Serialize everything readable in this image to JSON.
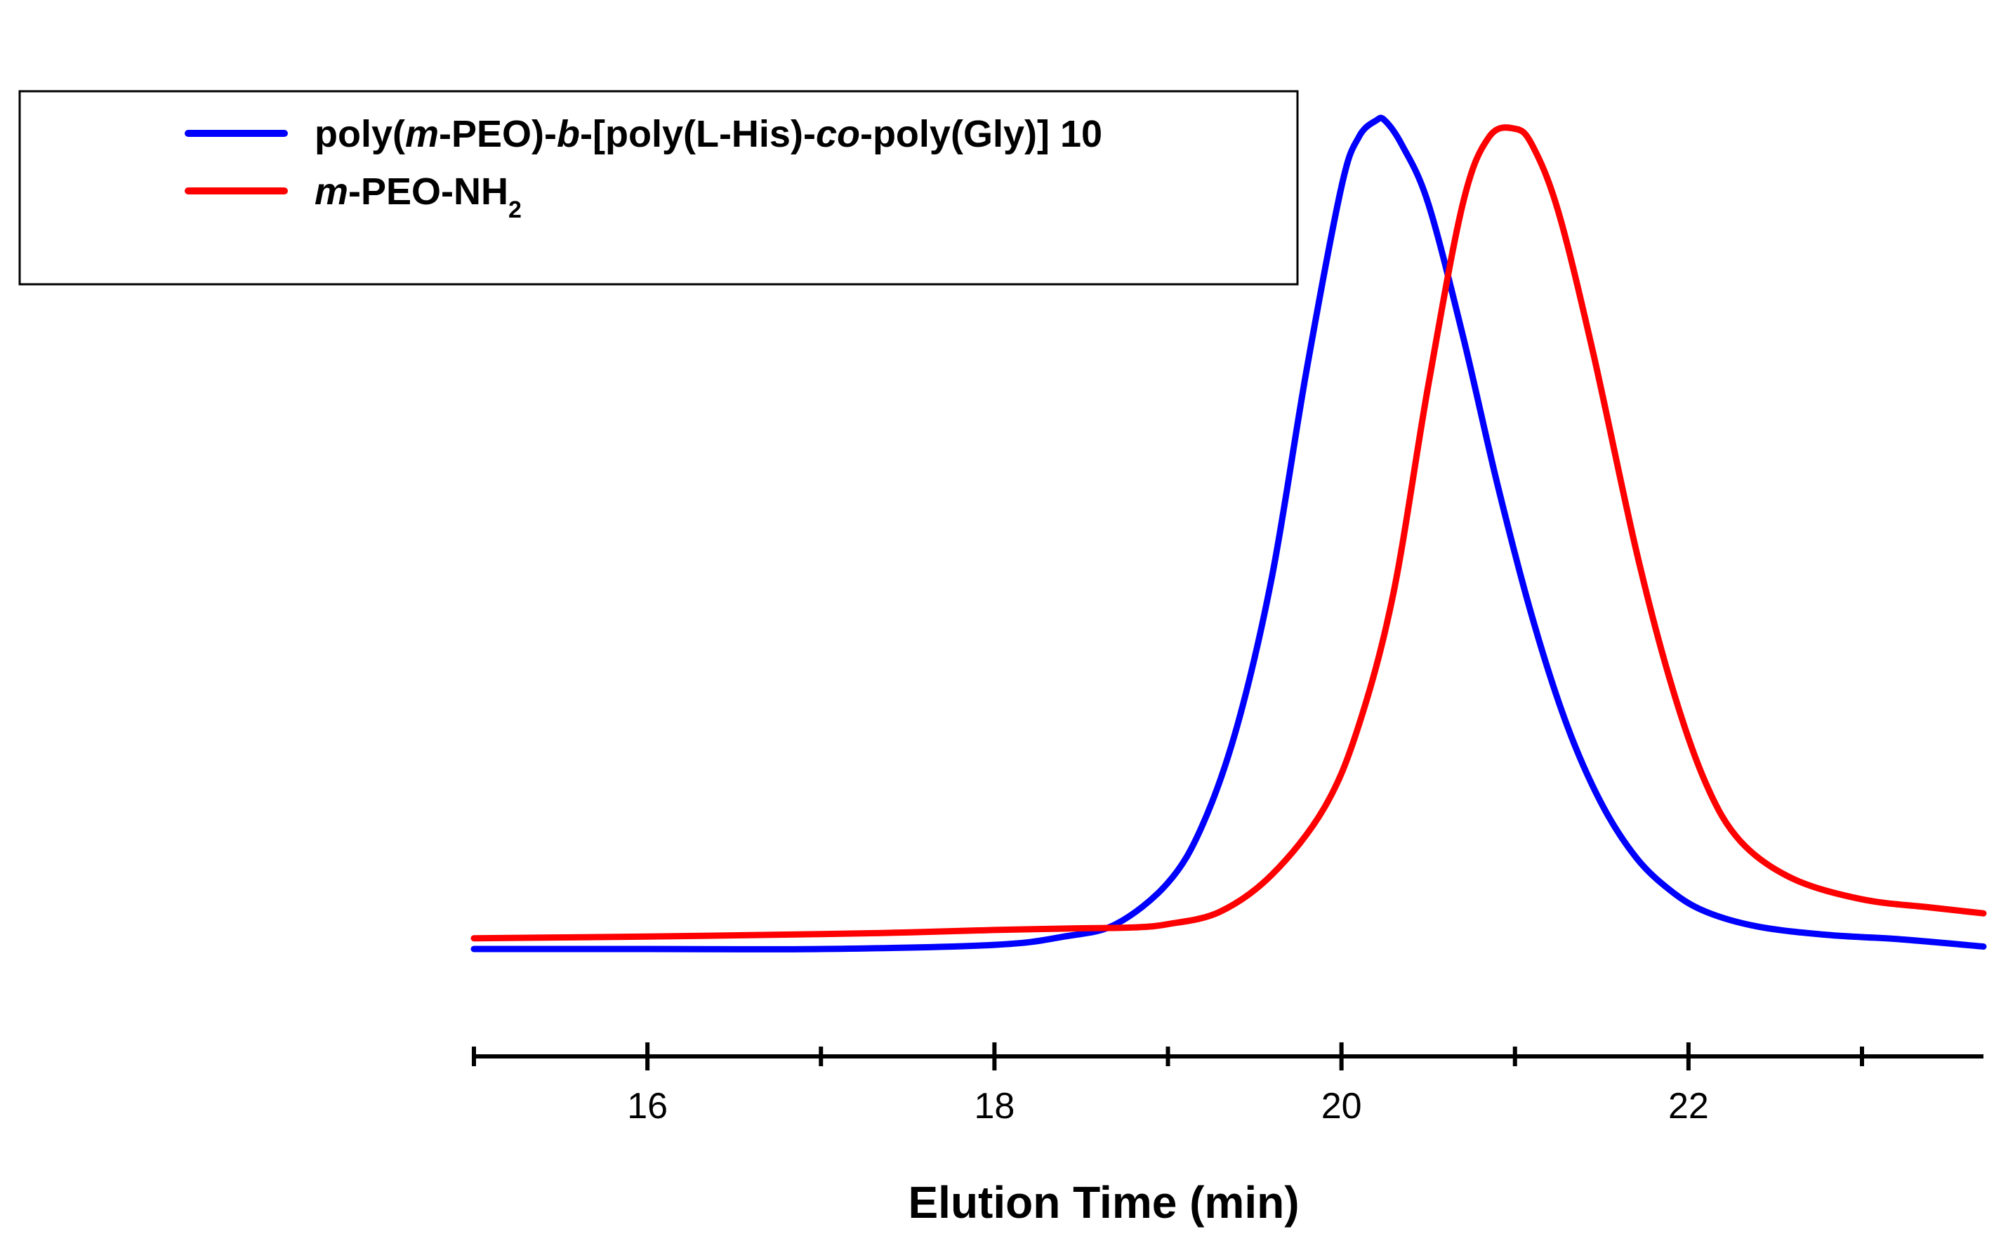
{
  "chart_data": {
    "type": "line",
    "title": "",
    "xlabel": "Elution Time (min)",
    "ylabel": "",
    "xlim": [
      15.0,
      23.7
    ],
    "ylim": [
      0,
      1.12
    ],
    "major_ticks": [
      16,
      18,
      20,
      22
    ],
    "minor_ticks": [
      15,
      17,
      19,
      21,
      23
    ],
    "tick_labels": [
      "16",
      "18",
      "20",
      "22"
    ],
    "grid": false,
    "legend_position": "top-left",
    "series": [
      {
        "name": "poly(m-PEO)-b-[poly(L-His)-co-poly(Gly)] 10",
        "color": "#0000ff",
        "x": [
          15.0,
          16.0,
          17.0,
          18.0,
          18.4,
          18.7,
          19.0,
          19.2,
          19.4,
          19.6,
          19.8,
          20.0,
          20.1,
          20.2,
          20.25,
          20.35,
          20.5,
          20.7,
          20.9,
          21.1,
          21.3,
          21.5,
          21.7,
          21.9,
          22.1,
          22.4,
          22.8,
          23.2,
          23.7
        ],
        "y": [
          0.0,
          0.0,
          0.0,
          0.005,
          0.015,
          0.03,
          0.08,
          0.15,
          0.27,
          0.45,
          0.7,
          0.92,
          0.98,
          1.0,
          1.0,
          0.97,
          0.9,
          0.74,
          0.56,
          0.4,
          0.27,
          0.175,
          0.11,
          0.07,
          0.045,
          0.027,
          0.017,
          0.012,
          0.003
        ]
      },
      {
        "name": "m-PEO-NH2",
        "color": "#ff0000",
        "x": [
          15.0,
          16.0,
          17.0,
          17.5,
          18.0,
          18.5,
          18.8,
          19.0,
          19.3,
          19.6,
          19.9,
          20.1,
          20.3,
          20.5,
          20.7,
          20.85,
          21.0,
          21.1,
          21.25,
          21.45,
          21.7,
          21.9,
          22.1,
          22.3,
          22.6,
          23.0,
          23.4,
          23.7
        ],
        "y": [
          0.013,
          0.015,
          0.018,
          0.02,
          0.023,
          0.025,
          0.026,
          0.03,
          0.045,
          0.09,
          0.17,
          0.27,
          0.43,
          0.68,
          0.9,
          0.98,
          0.99,
          0.97,
          0.89,
          0.72,
          0.48,
          0.32,
          0.2,
          0.13,
          0.085,
          0.06,
          0.05,
          0.043
        ]
      }
    ]
  },
  "legend": {
    "items": [
      {
        "color": "#0000ff",
        "parts": [
          {
            "text": "poly(",
            "italic": false
          },
          {
            "text": "m",
            "italic": true
          },
          {
            "text": "-PEO)-",
            "italic": false
          },
          {
            "text": "b",
            "italic": true
          },
          {
            "text": "-[poly(L-His)-",
            "italic": false
          },
          {
            "text": "co",
            "italic": true
          },
          {
            "text": "-poly(Gly)] 10",
            "italic": false
          }
        ]
      },
      {
        "color": "#ff0000",
        "parts": [
          {
            "text": "m",
            "italic": true
          },
          {
            "text": "-PEO-NH",
            "italic": false
          },
          {
            "text": "2",
            "italic": false,
            "sub": true
          }
        ]
      }
    ]
  }
}
